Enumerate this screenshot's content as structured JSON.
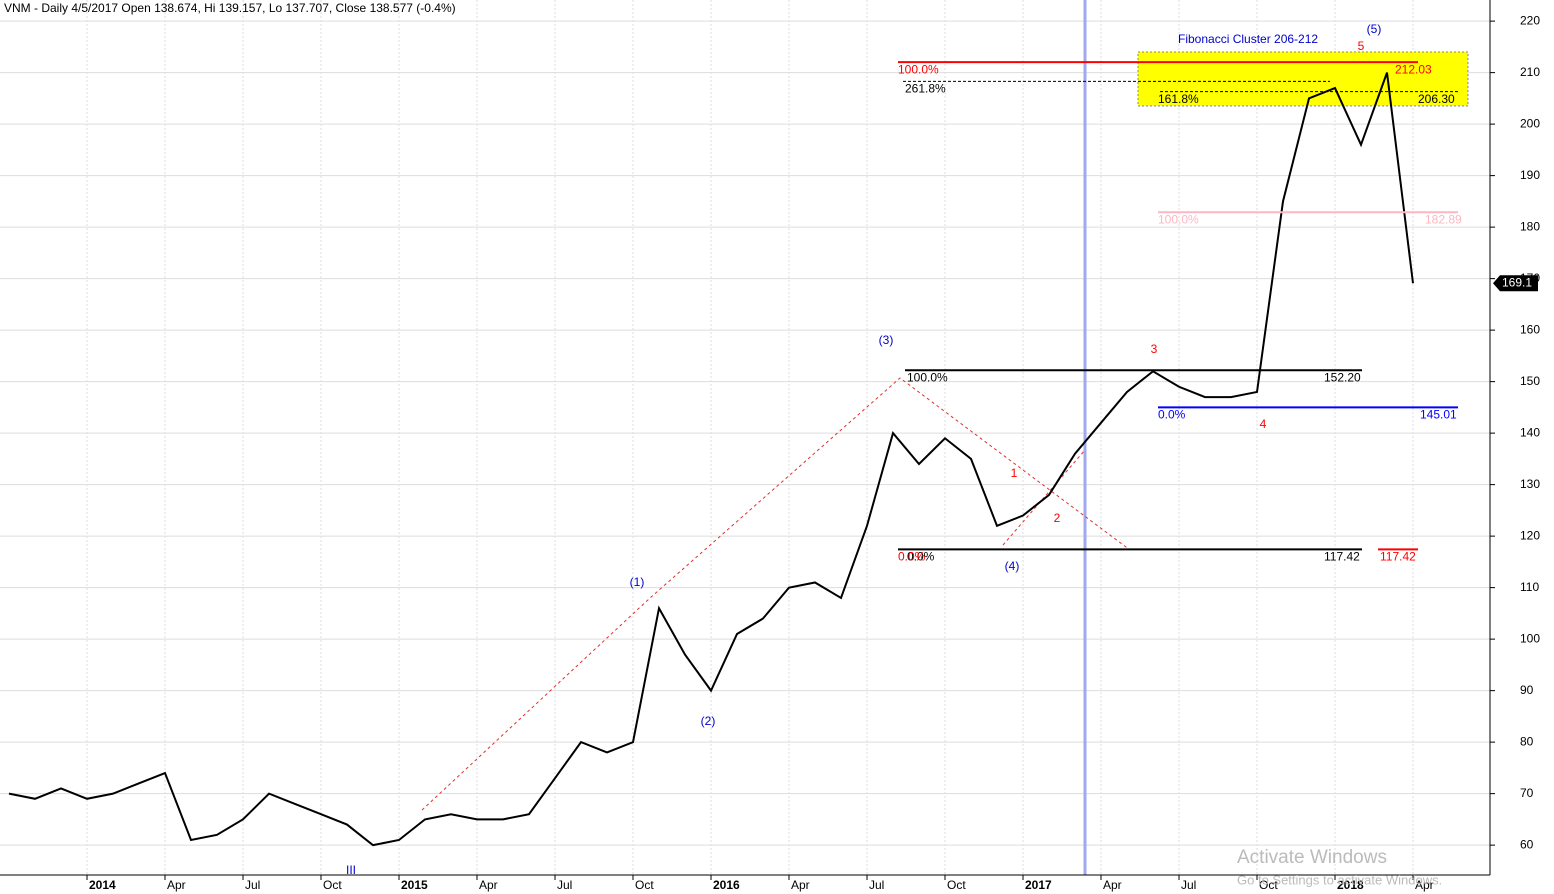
{
  "chart_data": {
    "type": "line",
    "title": "VNM - Daily 4/5/2017 Open 138.674, Hi 139.157, Lo 137.707, Close 138.577 (-0.4%)",
    "x": [
      "2013-10",
      "2013-11",
      "2013-12",
      "2014-01",
      "2014-02",
      "2014-03",
      "2014-04",
      "2014-05",
      "2014-06",
      "2014-07",
      "2014-08",
      "2014-09",
      "2014-10",
      "2014-11",
      "2014-12",
      "2015-01",
      "2015-02",
      "2015-03",
      "2015-04",
      "2015-05",
      "2015-06",
      "2015-07",
      "2015-08",
      "2015-09",
      "2015-10",
      "2015-11",
      "2015-12",
      "2016-01",
      "2016-02",
      "2016-03",
      "2016-04",
      "2016-05",
      "2016-06",
      "2016-07",
      "2016-08",
      "2016-09",
      "2016-10",
      "2016-11",
      "2016-12",
      "2017-01",
      "2017-02",
      "2017-03",
      "2017-04",
      "2017-05",
      "2017-06",
      "2017-07",
      "2017-08",
      "2017-09",
      "2017-10",
      "2017-11",
      "2017-12",
      "2018-01",
      "2018-02",
      "2018-03",
      "2018-04"
    ],
    "series": [
      {
        "name": "VNM",
        "color": "#000000",
        "values": [
          70,
          69,
          71,
          69,
          70,
          72,
          74,
          61,
          62,
          65,
          70,
          68,
          66,
          64,
          60,
          61,
          65,
          66,
          65,
          65,
          66,
          73,
          80,
          78,
          80,
          106,
          97,
          90,
          101,
          104,
          110,
          111,
          108,
          122,
          140,
          134,
          139,
          135,
          122,
          124,
          128,
          136,
          142,
          148,
          152,
          149,
          147,
          147,
          148,
          185,
          205,
          207,
          196,
          210,
          169.1
        ]
      }
    ],
    "ylim": [
      54.2,
      224.1
    ],
    "yticks": [
      60,
      70,
      80,
      90,
      100,
      110,
      120,
      130,
      140,
      150,
      160,
      170,
      180,
      190,
      200,
      210,
      220
    ],
    "xticks": [
      {
        "value": "2014-01",
        "label": "2014"
      },
      {
        "value": "2014-04",
        "label": "Apr"
      },
      {
        "value": "2014-07",
        "label": "Jul"
      },
      {
        "value": "2014-10",
        "label": "Oct"
      },
      {
        "value": "2015-01",
        "label": "2015"
      },
      {
        "value": "2015-04",
        "label": "Apr"
      },
      {
        "value": "2015-07",
        "label": "Jul"
      },
      {
        "value": "2015-10",
        "label": "Oct"
      },
      {
        "value": "2016-01",
        "label": "2016"
      },
      {
        "value": "2016-04",
        "label": "Apr"
      },
      {
        "value": "2016-07",
        "label": "Jul"
      },
      {
        "value": "2016-10",
        "label": "Oct"
      },
      {
        "value": "2017-01",
        "label": "2017"
      },
      {
        "value": "2017-04",
        "label": "Apr"
      },
      {
        "value": "2017-07",
        "label": "Jul"
      },
      {
        "value": "2017-10",
        "label": "Oct"
      },
      {
        "value": "2018-01",
        "label": "2018"
      },
      {
        "value": "2018-04",
        "label": "Apr"
      }
    ],
    "grid": true,
    "levels": [
      {
        "value": 212.03,
        "pct": "100.0%",
        "color": "#ff0000"
      },
      {
        "value": 208.3,
        "pct": "261.8%",
        "color": "#000000"
      },
      {
        "value": 206.3,
        "label": "206.30",
        "pct": "161.8%",
        "color": "#000000"
      },
      {
        "value": 182.89,
        "pct": "100.0%",
        "color": "#ffb6c1"
      },
      {
        "value": 152.2,
        "label": "152.20",
        "pct": "100.0%",
        "color": "#000000"
      },
      {
        "value": 145.01,
        "pct": "0.0%",
        "color": "#0000ff"
      },
      {
        "value": 117.42,
        "pct": "0.0%",
        "color": "#000000"
      },
      {
        "value": 117.42,
        "pct": "0.0%",
        "color": "#ff0000"
      }
    ],
    "annotations": [
      "Fibonacci Cluster 206-212",
      "(1)",
      "(2)",
      "(3)",
      "(4)",
      "(5)",
      "1",
      "2",
      "3",
      "4",
      "5",
      "III"
    ],
    "watermark": [
      "Activate Windows",
      "Go to Settings to activate Windows."
    ]
  }
}
